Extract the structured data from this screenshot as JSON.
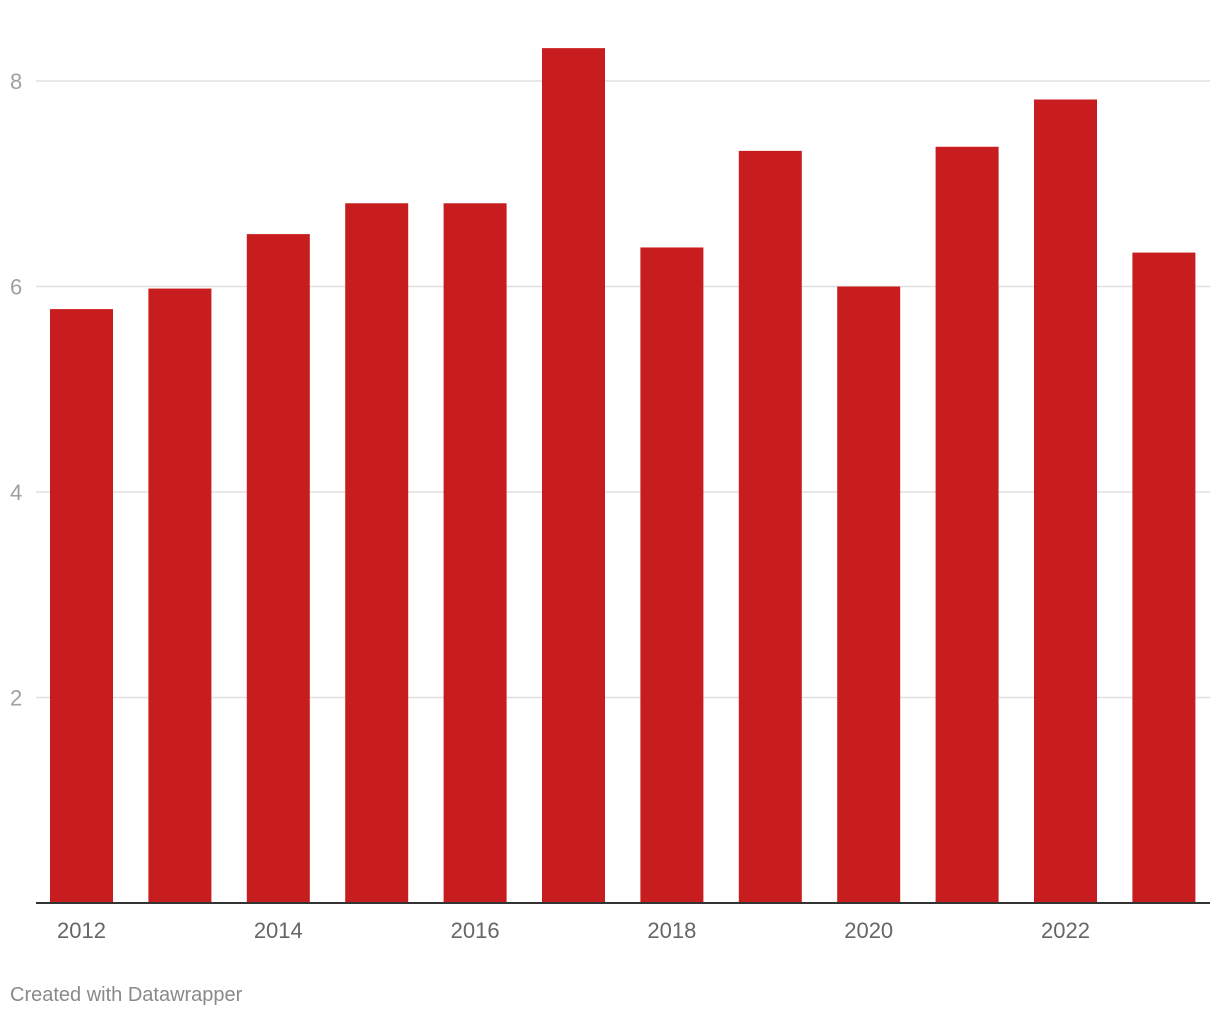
{
  "chart_data": {
    "type": "bar",
    "title": "",
    "xlabel": "",
    "ylabel": "",
    "categories": [
      "2012",
      "2013",
      "2014",
      "2015",
      "2016",
      "2017",
      "2018",
      "2019",
      "2020",
      "2021",
      "2022",
      "2023"
    ],
    "values": [
      5.78,
      5.98,
      6.51,
      6.81,
      6.81,
      8.32,
      6.38,
      7.32,
      6.0,
      7.36,
      7.82,
      6.33
    ],
    "ylim": [
      0,
      8.5
    ],
    "y_ticks": [
      "2",
      "4",
      "6",
      "8"
    ],
    "x_tick_labels": [
      "2012",
      "2014",
      "2016",
      "2018",
      "2020",
      "2022"
    ],
    "bar_color": "#c81d1f",
    "grid": true
  },
  "footer": {
    "credit": "Created with Datawrapper"
  }
}
